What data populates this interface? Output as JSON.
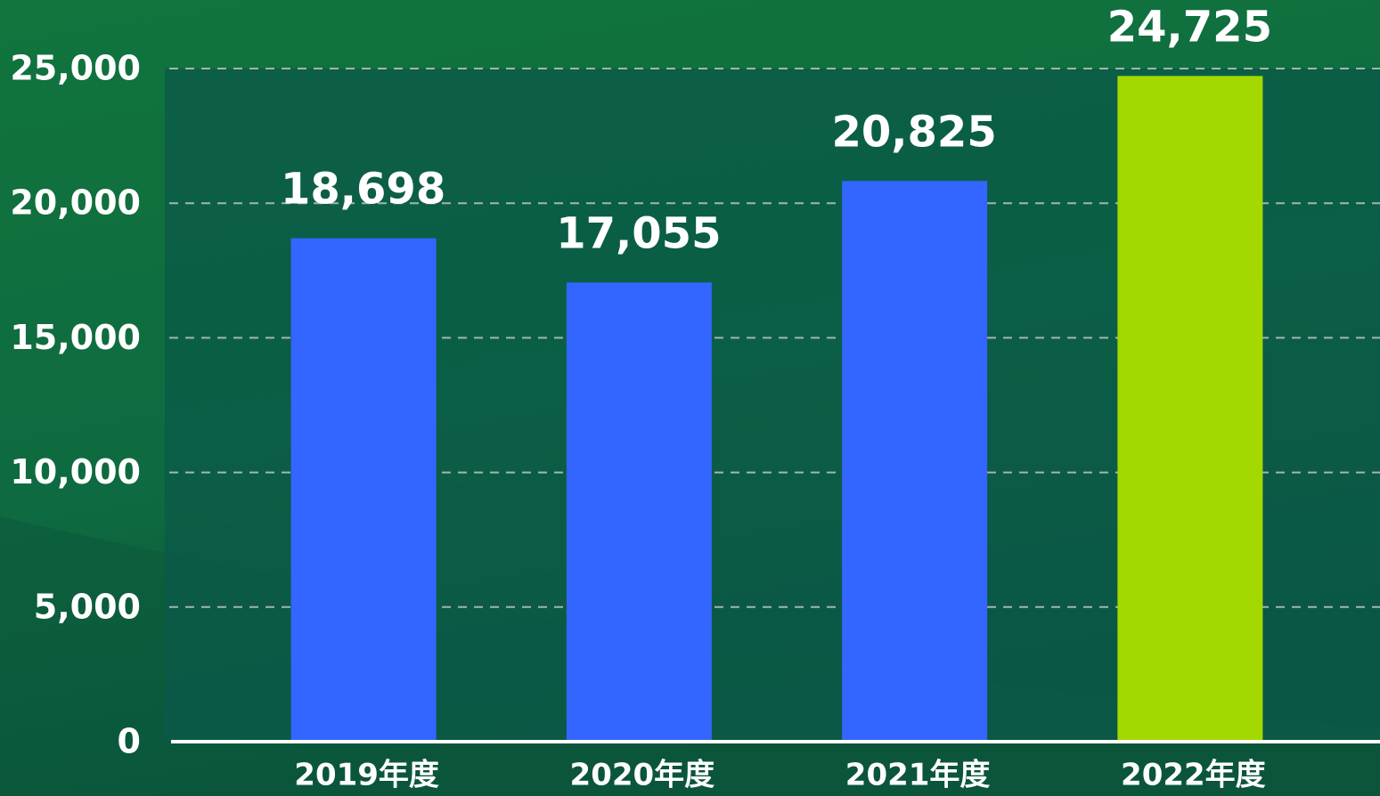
{
  "chart_data": {
    "type": "bar",
    "categories": [
      "2019年度",
      "2020年度",
      "2021年度",
      "2022年度"
    ],
    "values": [
      18698,
      17055,
      20825,
      24725
    ],
    "value_labels": [
      "18,698",
      "17,055",
      "20,825",
      "24,725"
    ],
    "colors": [
      "#3366ff",
      "#3366ff",
      "#3366ff",
      "#a3d900"
    ],
    "ylim": [
      0,
      25000
    ],
    "yticks": [
      0,
      {
        "value": 5000,
        "label": "5,000"
      },
      {
        "value": 10000,
        "label": "10,000"
      },
      {
        "value": 15000,
        "label": "15,000"
      },
      {
        "value": 20000,
        "label": "20,000"
      },
      {
        "value": 25000,
        "label": "25,000"
      }
    ],
    "grid": true
  }
}
